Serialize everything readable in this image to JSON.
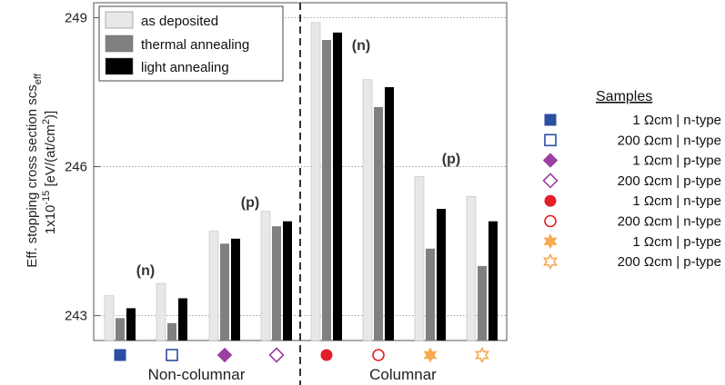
{
  "chart_data": {
    "type": "bar",
    "ylabel": "Eff. stopping cross section scs",
    "ylabel_sub": "eff",
    "ylabel2_prefix": "1x10",
    "ylabel2_exp": "-15",
    "ylabel2_suffix": " [eV/(at/cm",
    "ylabel2_exp2": "2",
    "ylabel2_end": ")]",
    "ylim": [
      242.5,
      249.3
    ],
    "yticks": [
      243,
      246,
      249
    ],
    "grid": "horizontal dotted",
    "legend_position": "top-left",
    "categories": [
      "1 Ωcm | n-type",
      "200 Ωcm | n-type",
      "1 Ωcm | p-type",
      "200 Ωcm | p-type",
      "1 Ωcm | n-type",
      "200 Ωcm | n-type",
      "1 Ωcm | p-type",
      "200 Ωcm | p-type"
    ],
    "series": [
      {
        "name": "as deposited",
        "color": "#e8e8e8",
        "values": [
          243.4,
          243.65,
          244.7,
          245.1,
          248.9,
          247.75,
          245.8,
          245.4
        ]
      },
      {
        "name": "thermal annealing",
        "color": "#808080",
        "values": [
          242.95,
          242.85,
          244.45,
          244.8,
          248.55,
          247.2,
          244.35,
          244.0
        ]
      },
      {
        "name": "light annealing",
        "color": "#000000",
        "values": [
          243.15,
          243.35,
          244.55,
          244.9,
          248.7,
          247.6,
          245.15,
          244.9
        ]
      }
    ],
    "group_labels": [
      "Non-columnar",
      "Columnar"
    ],
    "annotations": [
      {
        "text": "(n)",
        "group": 0,
        "pair": 0
      },
      {
        "text": "(p)",
        "group": 0,
        "pair": 1
      },
      {
        "text": "(n)",
        "group": 1,
        "pair": 0
      },
      {
        "text": "(p)",
        "group": 1,
        "pair": 1
      }
    ]
  },
  "samples": {
    "title": "Samples",
    "items": [
      {
        "label": "1 Ωcm | n-type",
        "icon": "filled-square-icon",
        "color": "#2b4ea0"
      },
      {
        "label": "200 Ωcm | n-type",
        "icon": "open-square-icon",
        "color": "#2b4ea0"
      },
      {
        "label": "1 Ωcm | p-type",
        "icon": "filled-diamond-icon",
        "color": "#9b3fa0"
      },
      {
        "label": "200 Ωcm | p-type",
        "icon": "open-diamond-icon",
        "color": "#9b3fa0"
      },
      {
        "label": "1 Ωcm | n-type",
        "icon": "filled-circle-icon",
        "color": "#e41e26"
      },
      {
        "label": "200 Ωcm | n-type",
        "icon": "open-circle-icon",
        "color": "#e41e26"
      },
      {
        "label": "1 Ωcm | p-type",
        "icon": "filled-star-icon",
        "color": "#f7a950"
      },
      {
        "label": "200 Ωcm | p-type",
        "icon": "open-star-icon",
        "color": "#f7a950"
      }
    ]
  }
}
